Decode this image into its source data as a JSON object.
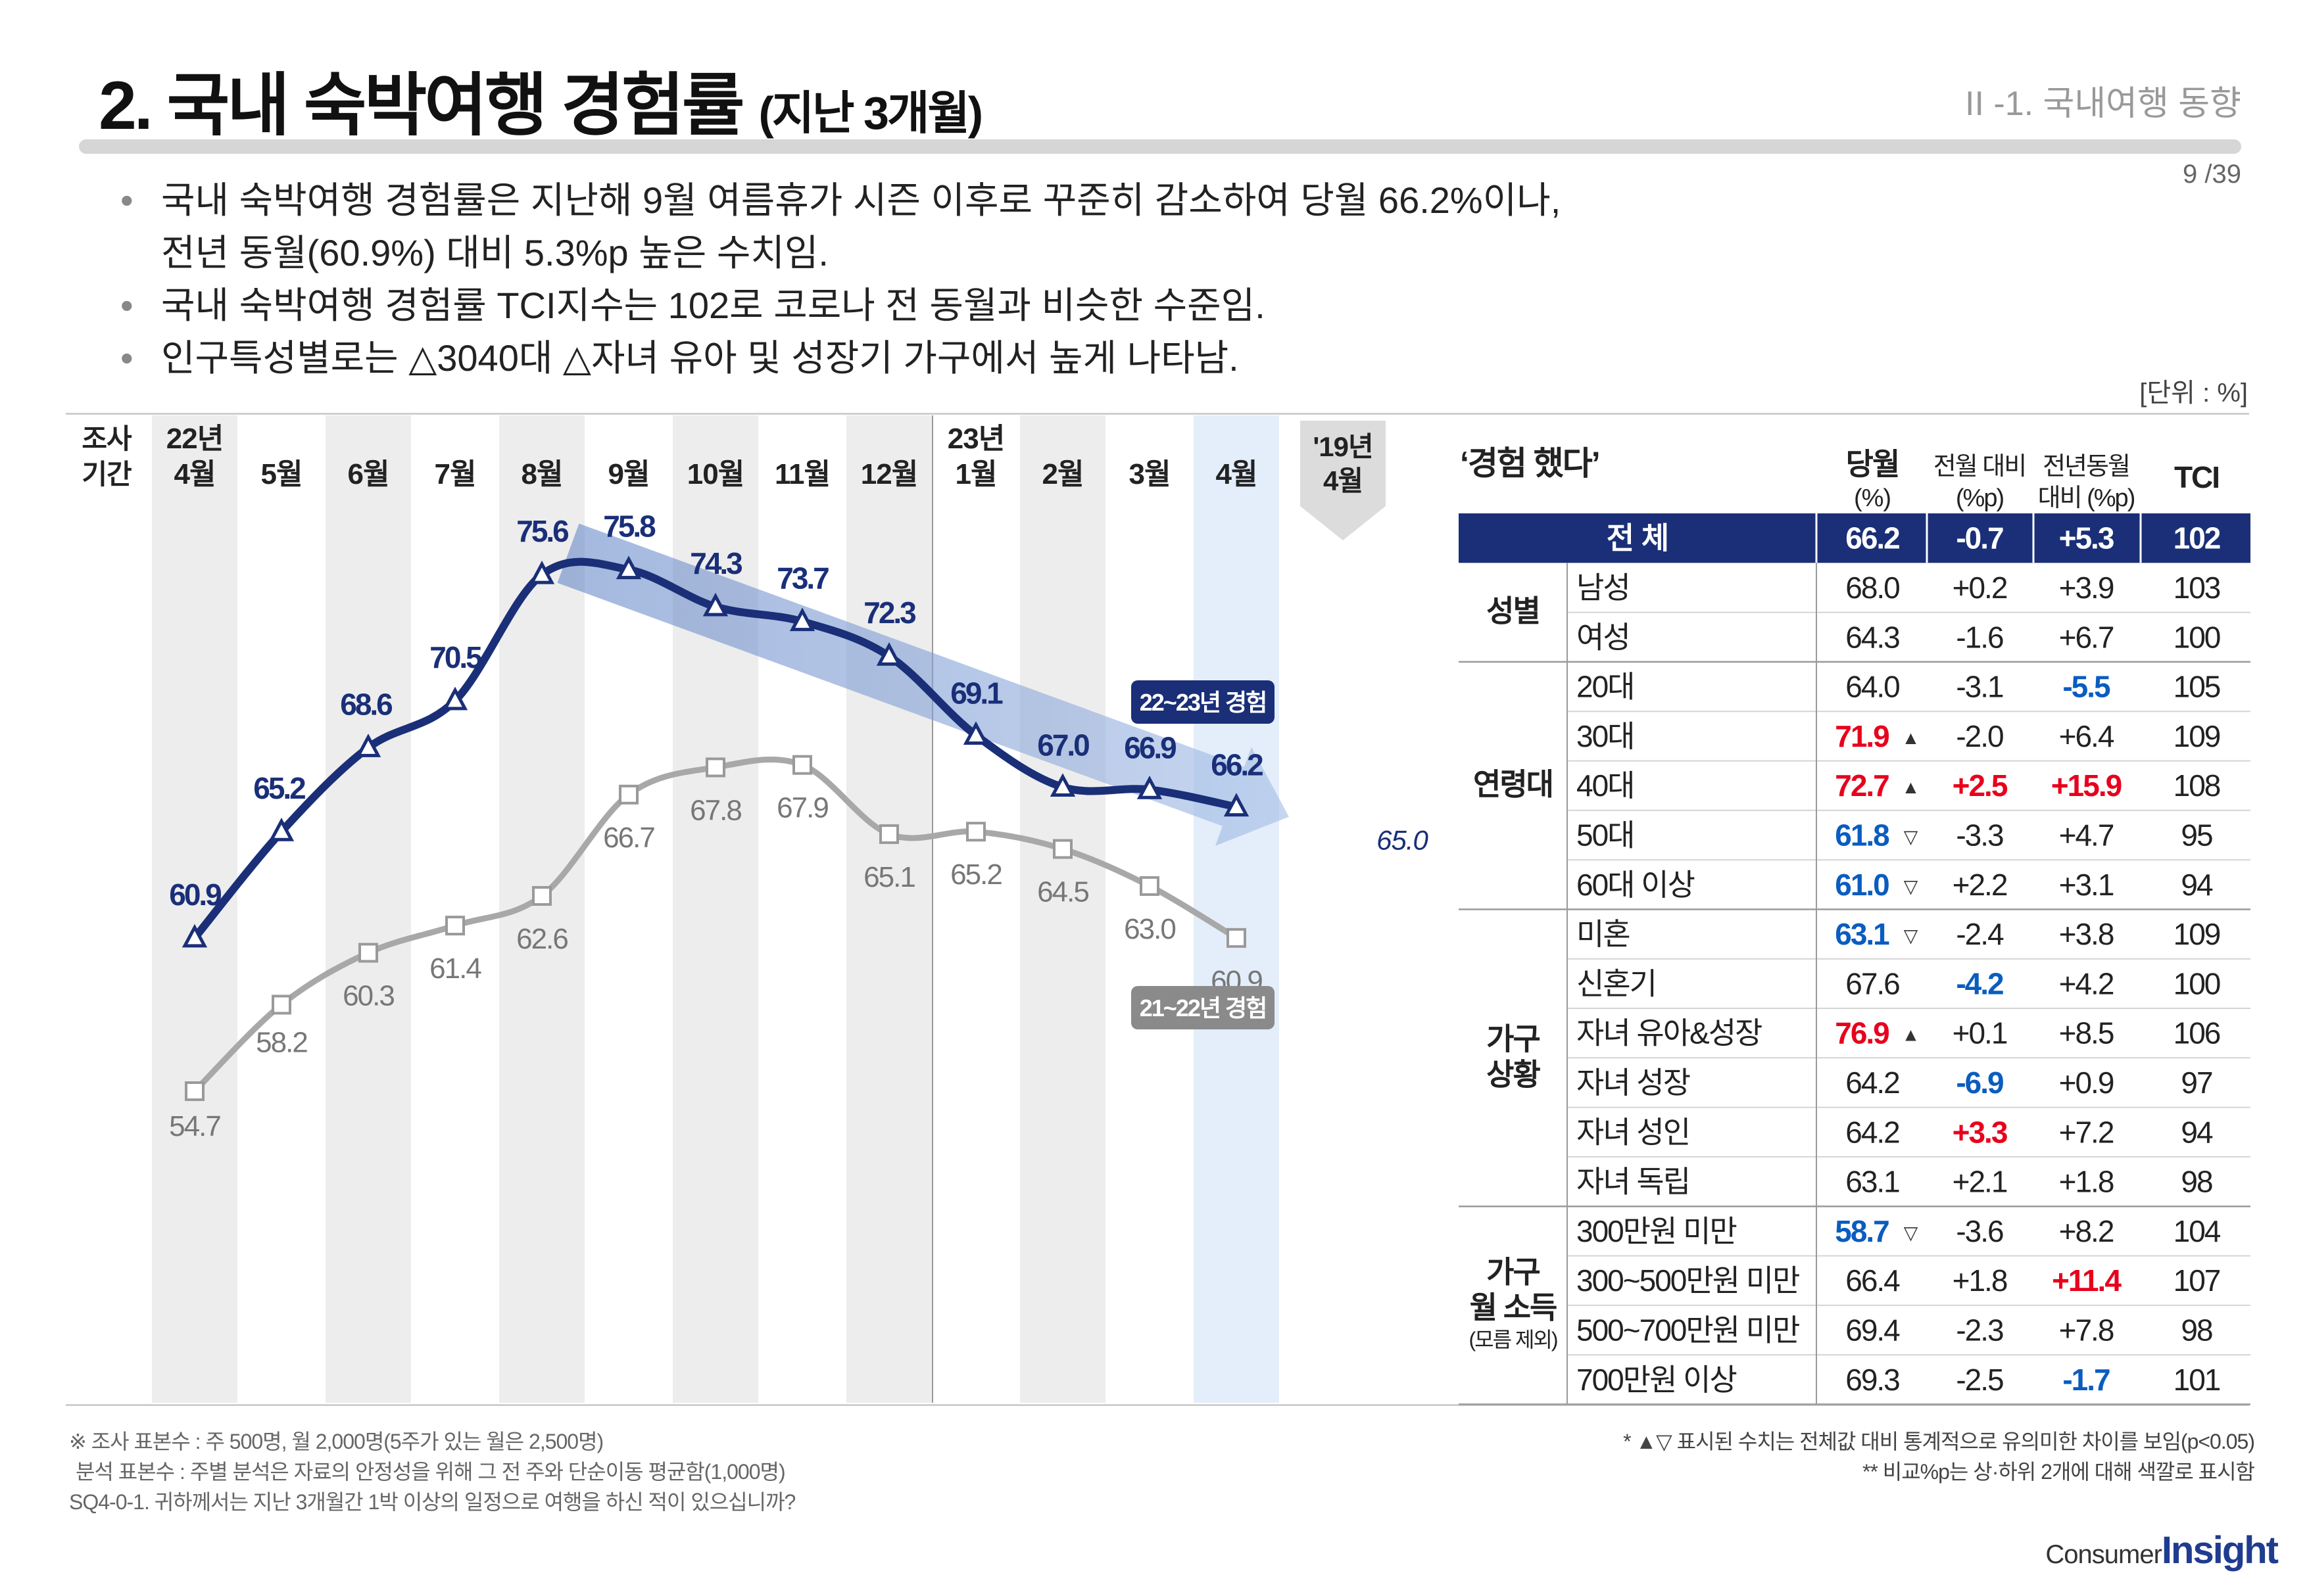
{
  "header": {
    "title": "2. 국내 숙박여행 경험률",
    "title_sub": "(지난 3개월)",
    "section": "II -1. 국내여행 동향",
    "page": "9 /39"
  },
  "bullets": [
    "국내 숙박여행 경험률은 지난해 9월 여름휴가 시즌 이후로 꾸준히 감소하여 당월 66.2%이나,",
    "전년 동월(60.9%) 대비 5.3%p 높은 수치임.",
    "국내 숙박여행 경험률 TCI지수는 102로 코로나 전 동월과 비슷한 수준임.",
    "인구특성별로는 △3040대 △자녀 유아 및 성장기 가구에서 높게 나타남."
  ],
  "unit": "[단위 : %]",
  "chart_data": {
    "type": "line",
    "period_label": [
      "조사",
      "기간"
    ],
    "categories": [
      [
        "22년",
        "4월"
      ],
      [
        "",
        "5월"
      ],
      [
        "",
        "6월"
      ],
      [
        "",
        "7월"
      ],
      [
        "",
        "8월"
      ],
      [
        "",
        "9월"
      ],
      [
        "",
        "10월"
      ],
      [
        "",
        "11월"
      ],
      [
        "",
        "12월"
      ],
      [
        "23년",
        "1월"
      ],
      [
        "",
        "2월"
      ],
      [
        "",
        "3월"
      ],
      [
        "",
        "4월"
      ]
    ],
    "extra_category": [
      "'19년",
      "4월"
    ],
    "series": [
      {
        "name": "22~23년 경험",
        "color": "#1a2f78",
        "values": [
          60.9,
          65.2,
          68.6,
          70.5,
          75.6,
          75.8,
          74.3,
          73.7,
          72.3,
          69.1,
          67.0,
          66.9,
          66.2
        ],
        "labels": [
          "60.9",
          "65.2",
          "68.6",
          "70.5",
          "75.6",
          "75.8",
          "74.3",
          "73.7",
          "72.3",
          "69.1",
          "67.0",
          "66.9",
          "66.2"
        ]
      },
      {
        "name": "21~22년 경험",
        "color": "#a8a8a8",
        "values": [
          54.7,
          58.2,
          60.3,
          61.4,
          62.6,
          66.7,
          67.8,
          67.9,
          65.1,
          65.2,
          64.5,
          63.0,
          60.9
        ],
        "labels": [
          "54.7",
          "58.2",
          "60.3",
          "61.4",
          "62.6",
          "66.7",
          "67.8",
          "67.9",
          "65.1",
          "65.2",
          "64.5",
          "63.0",
          "60.9"
        ]
      }
    ],
    "extra_value": 65.0,
    "extra_value_label": "65.0",
    "trend": "down"
  },
  "table": {
    "heading": "‘경험 했다’",
    "columns": [
      {
        "key": "cur",
        "l1": "당월",
        "l2": "(%)"
      },
      {
        "key": "mom",
        "l1": "전월 대비",
        "l2": "(%p)"
      },
      {
        "key": "yoy",
        "l1": "전년동월",
        "l2": "대비 (%p)"
      },
      {
        "key": "tci",
        "l1": "TCI",
        "l2": ""
      }
    ],
    "total": {
      "label": "전 체",
      "cur": "66.2",
      "mom": "-0.7",
      "yoy": "+5.3",
      "tci": "102"
    },
    "groups": [
      {
        "name": [
          "성별"
        ],
        "rows": [
          {
            "label": "남성",
            "cur": "68.0",
            "mom": "+0.2",
            "yoy": "+3.9",
            "tci": "103"
          },
          {
            "label": "여성",
            "cur": "64.3",
            "mom": "-1.6",
            "yoy": "+6.7",
            "tci": "100"
          }
        ]
      },
      {
        "name": [
          "연령대"
        ],
        "rows": [
          {
            "label": "20대",
            "cur": "64.0",
            "mom": "-3.1",
            "yoy": "-5.5",
            "tci": "105",
            "yoy_c": "blue"
          },
          {
            "label": "30대",
            "cur": "71.9",
            "mom": "-2.0",
            "yoy": "+6.4",
            "tci": "109",
            "cur_c": "red",
            "mark": "▲"
          },
          {
            "label": "40대",
            "cur": "72.7",
            "mom": "+2.5",
            "yoy": "+15.9",
            "tci": "108",
            "cur_c": "red",
            "mark": "▲",
            "mom_c": "red",
            "yoy_c": "red"
          },
          {
            "label": "50대",
            "cur": "61.8",
            "mom": "-3.3",
            "yoy": "+4.7",
            "tci": "95",
            "cur_c": "blue",
            "mark": "▽"
          },
          {
            "label": "60대 이상",
            "cur": "61.0",
            "mom": "+2.2",
            "yoy": "+3.1",
            "tci": "94",
            "cur_c": "blue",
            "mark": "▽"
          }
        ]
      },
      {
        "name": [
          "가구",
          "상황"
        ],
        "rows": [
          {
            "label": "미혼",
            "cur": "63.1",
            "mom": "-2.4",
            "yoy": "+3.8",
            "tci": "109",
            "cur_c": "blue",
            "mark": "▽"
          },
          {
            "label": "신혼기",
            "cur": "67.6",
            "mom": "-4.2",
            "yoy": "+4.2",
            "tci": "100",
            "mom_c": "blue"
          },
          {
            "label": "자녀 유아&성장",
            "cur": "76.9",
            "mom": "+0.1",
            "yoy": "+8.5",
            "tci": "106",
            "cur_c": "red",
            "mark": "▲"
          },
          {
            "label": "자녀 성장",
            "cur": "64.2",
            "mom": "-6.9",
            "yoy": "+0.9",
            "tci": "97",
            "mom_c": "blue"
          },
          {
            "label": "자녀 성인",
            "cur": "64.2",
            "mom": "+3.3",
            "yoy": "+7.2",
            "tci": "94",
            "mom_c": "red"
          },
          {
            "label": "자녀 독립",
            "cur": "63.1",
            "mom": "+2.1",
            "yoy": "+1.8",
            "tci": "98"
          }
        ]
      },
      {
        "name": [
          "가구",
          "월 소득"
        ],
        "note": "(모름 제외)",
        "rows": [
          {
            "label": "300만원 미만",
            "cur": "58.7",
            "mom": "-3.6",
            "yoy": "+8.2",
            "tci": "104",
            "cur_c": "blue",
            "mark": "▽"
          },
          {
            "label": "300~500만원 미만",
            "cur": "66.4",
            "mom": "+1.8",
            "yoy": "+11.4",
            "tci": "107",
            "yoy_c": "red"
          },
          {
            "label": "500~700만원 미만",
            "cur": "69.4",
            "mom": "-2.3",
            "yoy": "+7.8",
            "tci": "98"
          },
          {
            "label": "700만원 이상",
            "cur": "69.3",
            "mom": "-2.5",
            "yoy": "-1.7",
            "tci": "101",
            "yoy_c": "blue"
          }
        ]
      }
    ]
  },
  "footnotes_left": [
    "※ 조사 표본수 : 주 500명, 월 2,000명(5주가 있는 월은 2,500명)",
    "분석 표본수 : 주별 분석은 자료의 안정성을 위해 그 전 주와 단순이동 평균함(1,000명)",
    "SQ4-0-1. 귀하께서는 지난 3개월간 1박 이상의 일정으로 여행을 하신 적이 있으십니까?"
  ],
  "footnotes_right": [
    "* ▲▽ 표시된 수치는 전체값 대비 통계적으로 유의미한 차이를 보임(p<0.05)",
    "** 비교%p는 상·하위 2개에 대해 색깔로 표시함"
  ],
  "logo": {
    "part1": "Consumer",
    "part2": "Insight"
  },
  "colors": {
    "navy": "#1a2f78",
    "gray": "#a8a8a8",
    "red": "#e8001c",
    "blue": "#0a5cc0",
    "highlight": "#e3eefa",
    "shade": "#ededed"
  }
}
